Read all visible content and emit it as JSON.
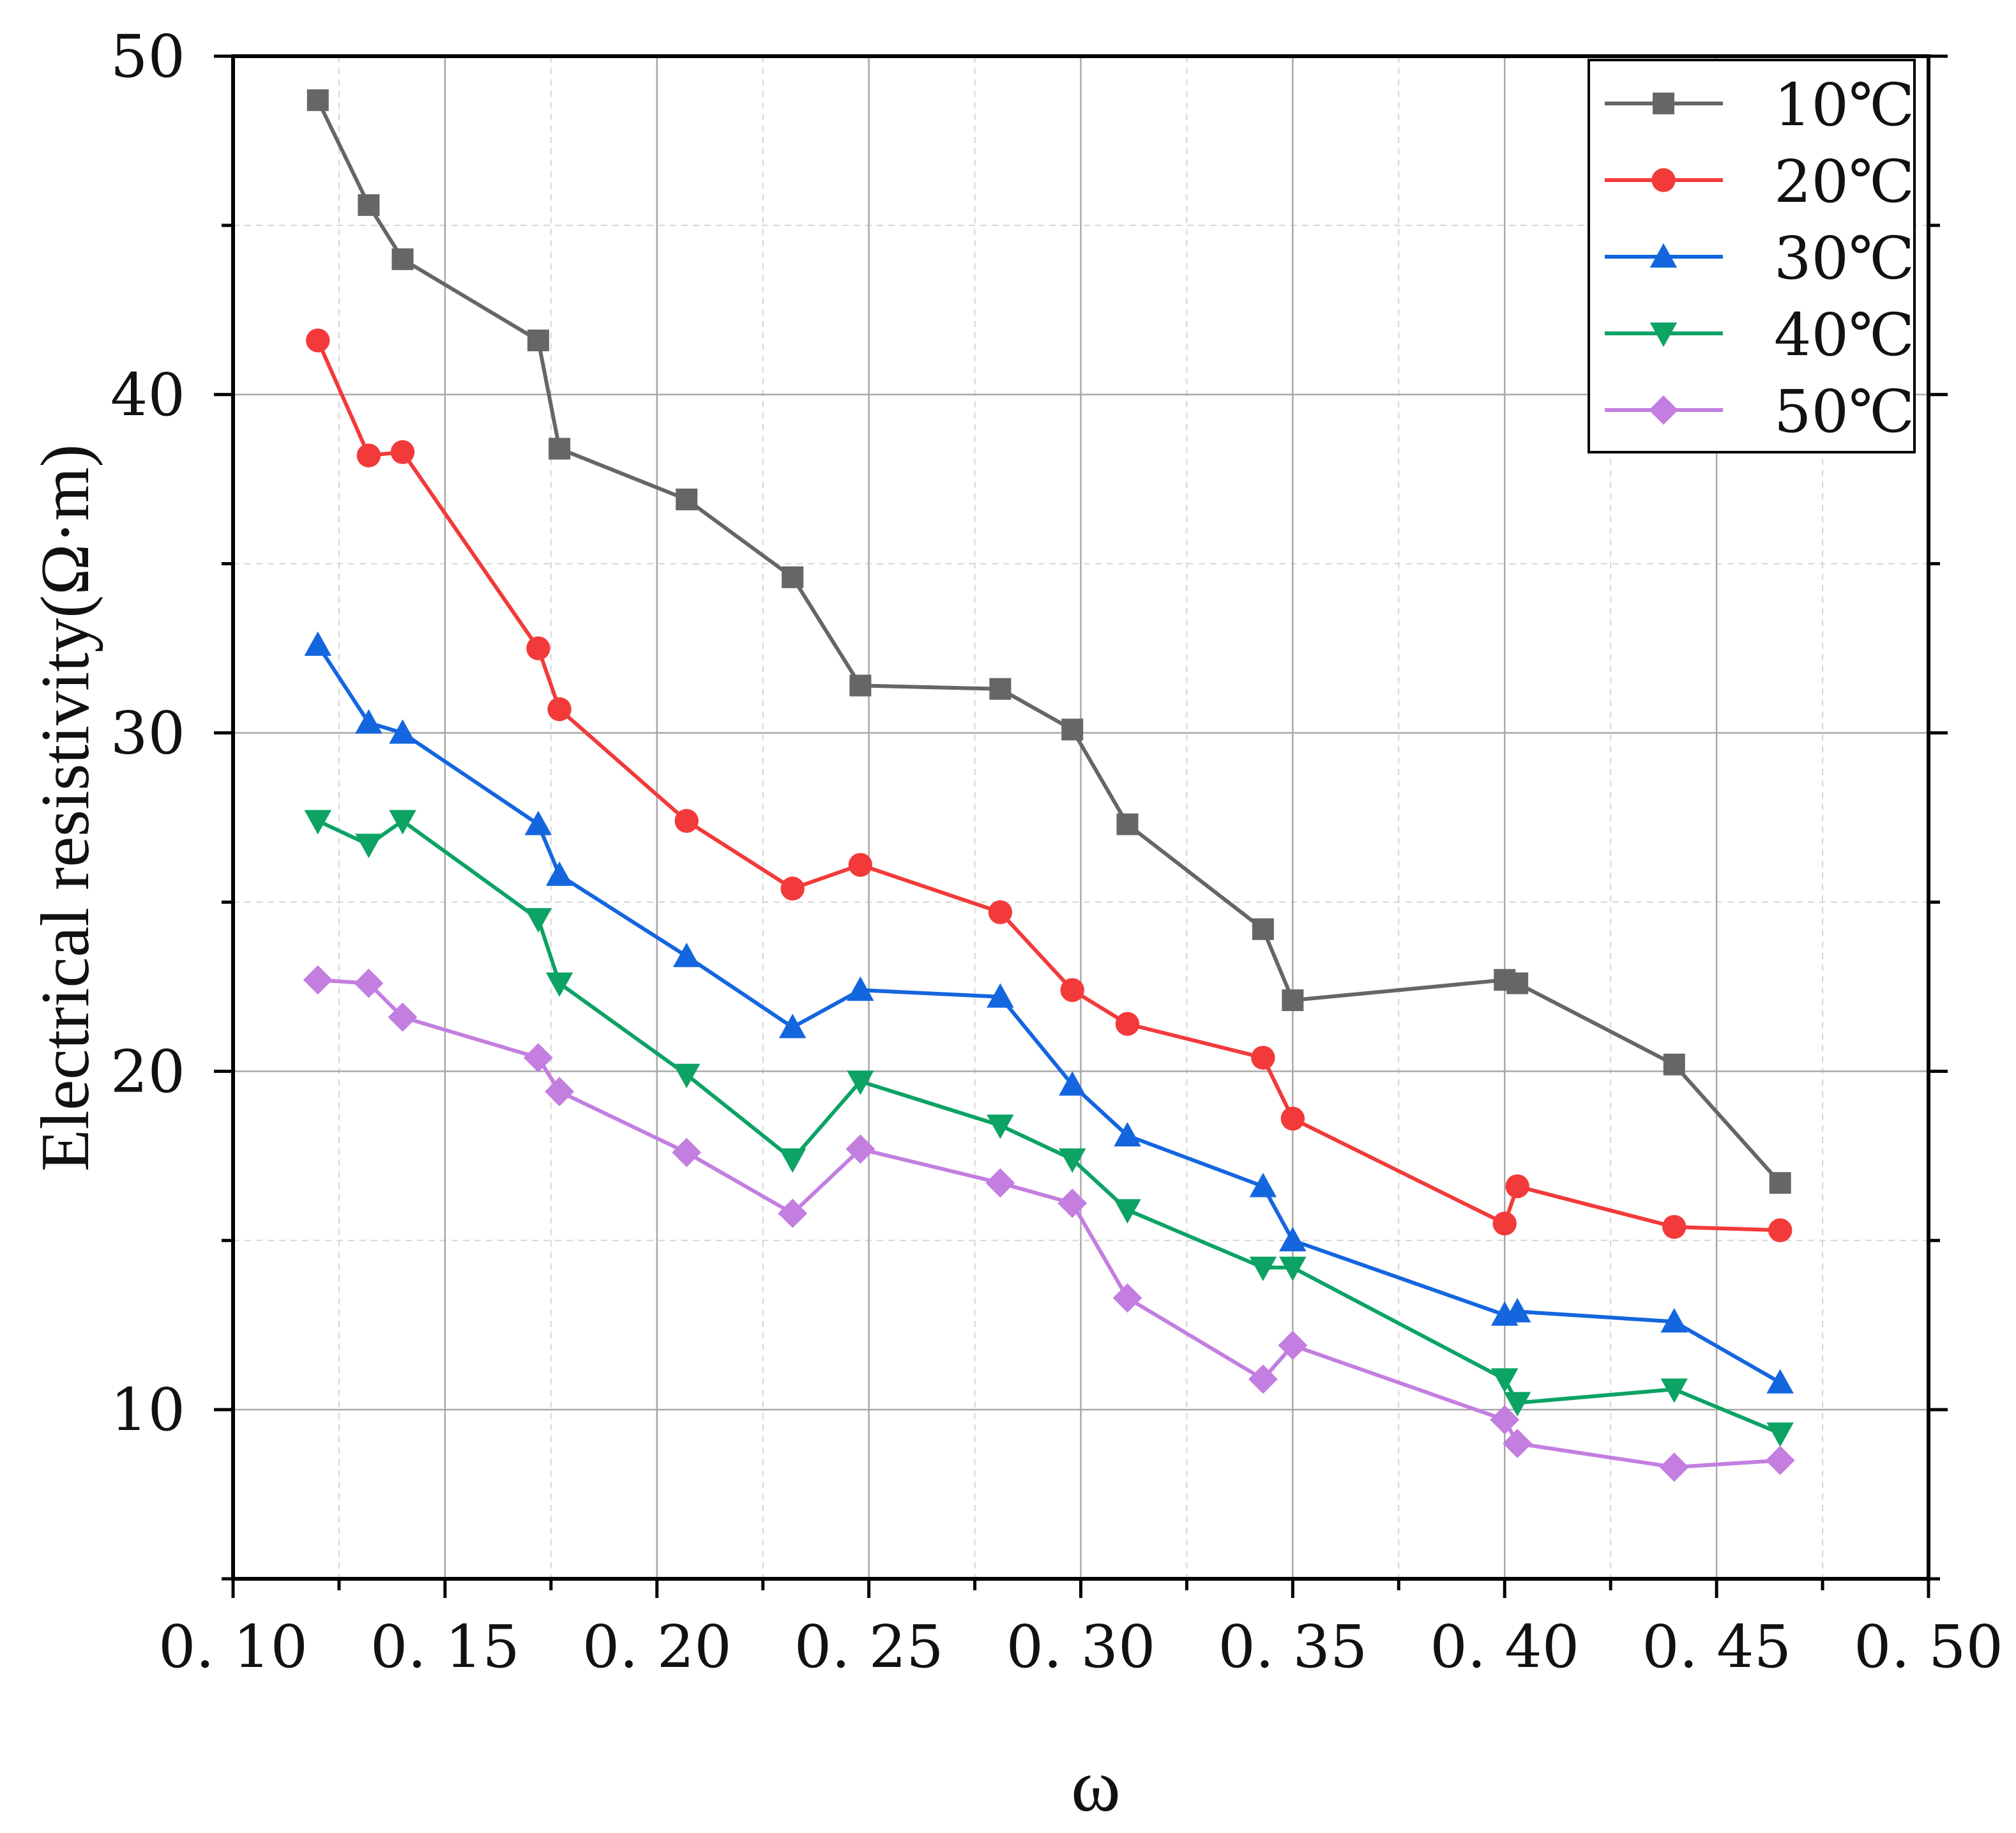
{
  "chart_data": {
    "type": "line",
    "title": "",
    "xlabel": "ω",
    "ylabel": "Electrical resistivity(Ω·m)",
    "xlim": [
      0.1,
      0.5
    ],
    "ylim": [
      5,
      50
    ],
    "grid": true,
    "legend_position": "top-right",
    "x_tick_labels": [
      "0. 10",
      "0. 15",
      "0. 20",
      "0. 25",
      "0. 30",
      "0. 35",
      "0. 40",
      "0. 45",
      "0. 50"
    ],
    "x_tick_values": [
      0.1,
      0.15,
      0.2,
      0.25,
      0.3,
      0.35,
      0.4,
      0.45,
      0.5
    ],
    "y_tick_labels": [
      "10",
      "20",
      "30",
      "40",
      "50"
    ],
    "y_tick_values": [
      10,
      20,
      30,
      40,
      50
    ],
    "x": [
      0.12,
      0.132,
      0.14,
      0.172,
      0.177,
      0.207,
      0.232,
      0.248,
      0.281,
      0.298,
      0.311,
      0.343,
      0.35,
      0.4,
      0.403,
      0.44,
      0.465
    ],
    "series": [
      {
        "name": "10℃",
        "color": "#666666",
        "marker": "square",
        "values": [
          48.7,
          45.6,
          44.0,
          41.6,
          38.4,
          36.9,
          34.6,
          31.4,
          31.3,
          30.1,
          27.3,
          24.2,
          22.1,
          22.7,
          22.6,
          20.2,
          16.7
        ]
      },
      {
        "name": "20℃",
        "color": "#f23a3a",
        "marker": "circle",
        "values": [
          41.6,
          38.2,
          38.3,
          32.5,
          30.7,
          27.4,
          25.4,
          26.1,
          24.7,
          22.4,
          21.4,
          20.4,
          18.6,
          15.5,
          16.6,
          15.4,
          15.3
        ]
      },
      {
        "name": "30℃",
        "color": "#1466df",
        "marker": "triangle-up",
        "values": [
          32.6,
          30.3,
          30.0,
          27.3,
          25.8,
          23.4,
          21.3,
          22.4,
          22.2,
          19.6,
          18.1,
          16.6,
          15.0,
          12.8,
          12.9,
          12.6,
          10.8
        ]
      },
      {
        "name": "40℃",
        "color": "#0ca365",
        "marker": "triangle-down",
        "values": [
          27.4,
          26.7,
          27.4,
          24.5,
          22.6,
          19.9,
          17.4,
          19.7,
          18.4,
          17.4,
          15.9,
          14.2,
          14.2,
          10.9,
          10.2,
          10.6,
          9.3
        ]
      },
      {
        "name": "50℃",
        "color": "#c37ee0",
        "marker": "diamond",
        "values": [
          22.7,
          22.6,
          21.6,
          20.4,
          19.4,
          17.6,
          15.8,
          17.7,
          16.7,
          16.1,
          13.3,
          10.9,
          11.9,
          9.7,
          9.0,
          8.3,
          8.5
        ]
      }
    ]
  }
}
